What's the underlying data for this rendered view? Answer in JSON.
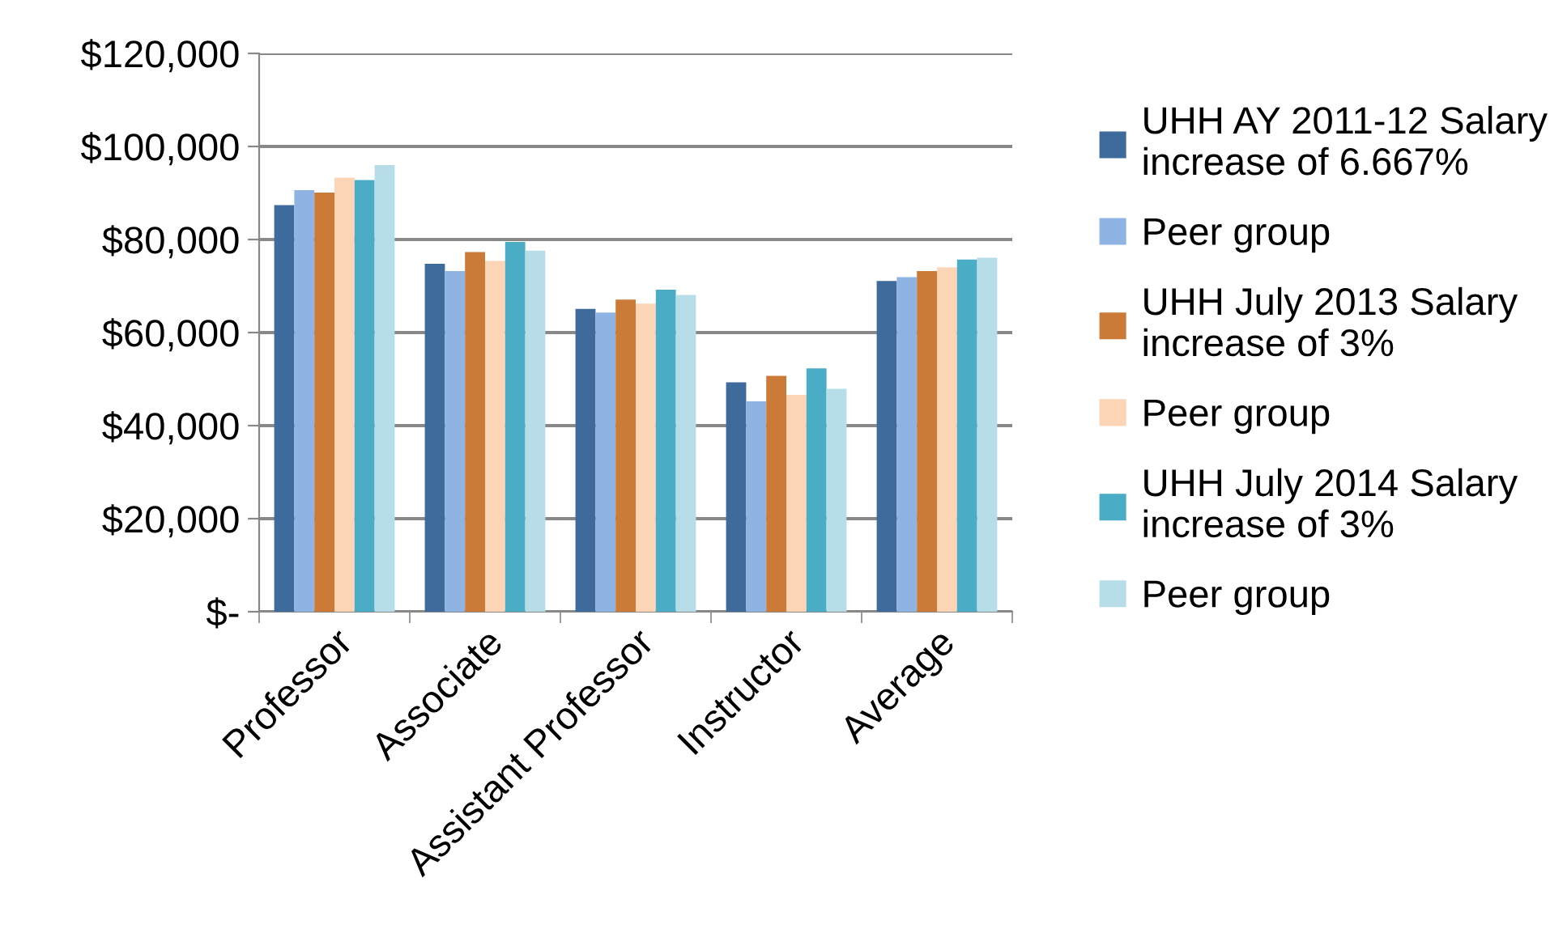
{
  "chart_data": {
    "type": "bar",
    "categories": [
      "Professor",
      "Associate",
      "Assistant Professor",
      "Instructor",
      "Average"
    ],
    "series": [
      {
        "name": "UHH AY 2011-12 Salary increase of 6.667%",
        "color": "#3f6a9c",
        "values": [
          87400,
          74800,
          65100,
          49300,
          71100
        ]
      },
      {
        "name": "Peer group",
        "color": "#8fb3e2",
        "values": [
          90600,
          73200,
          64300,
          45200,
          71900
        ]
      },
      {
        "name": "UHH July 2013 Salary increase of 3%",
        "color": "#cc7a38",
        "values": [
          90100,
          77300,
          67100,
          50700,
          73200
        ]
      },
      {
        "name": "Peer group",
        "color": "#fbd5b5",
        "values": [
          93300,
          75400,
          66200,
          46600,
          74000
        ]
      },
      {
        "name": "UHH July 2014 Salary increase of 3%",
        "color": "#4bacc6",
        "values": [
          92800,
          79500,
          69200,
          52300,
          75700
        ]
      },
      {
        "name": "Peer group",
        "color": "#b7dee8",
        "values": [
          96000,
          77600,
          68100,
          47900,
          76100
        ]
      }
    ],
    "ylim": [
      0,
      120000
    ],
    "yticks": [
      {
        "value": 0,
        "label": "$-"
      },
      {
        "value": 20000,
        "label": "$20,000"
      },
      {
        "value": 40000,
        "label": "$40,000"
      },
      {
        "value": 60000,
        "label": "$60,000"
      },
      {
        "value": 80000,
        "label": "$80,000"
      },
      {
        "value": 100000,
        "label": "$100,000"
      },
      {
        "value": 120000,
        "label": "$120,000"
      }
    ],
    "grid": "y",
    "legend": "right"
  }
}
